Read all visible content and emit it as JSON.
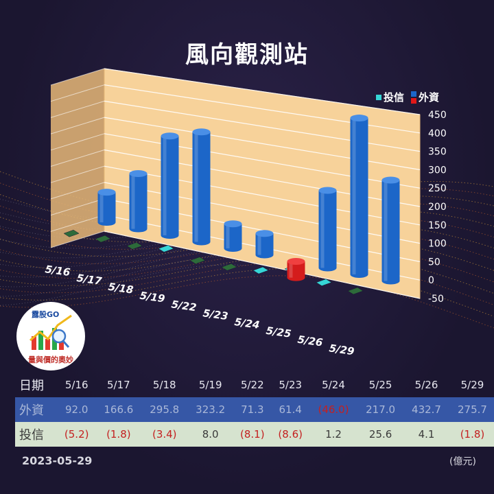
{
  "title": "風向觀測站",
  "legend": [
    {
      "label": "投信",
      "color": "#36d6d6"
    },
    {
      "label": "外資",
      "color": "#1c66c8"
    }
  ],
  "legend_neg_color": "#e01818",
  "chart_data": {
    "type": "bar",
    "title": "風向觀測站",
    "categories": [
      "5/16",
      "5/17",
      "5/18",
      "5/19",
      "5/22",
      "5/23",
      "5/24",
      "5/25",
      "5/26",
      "5/29"
    ],
    "series": [
      {
        "name": "外資",
        "values": [
          92.0,
          166.6,
          295.8,
          323.2,
          71.3,
          61.4,
          -46.0,
          217.0,
          432.7,
          275.7
        ]
      },
      {
        "name": "投信",
        "values": [
          -5.2,
          -1.8,
          -3.4,
          8.0,
          -8.1,
          -8.6,
          1.2,
          25.6,
          4.1,
          -1.8
        ]
      }
    ],
    "yticks": [
      "450",
      "400",
      "350",
      "300",
      "250",
      "200",
      "150",
      "100",
      "50",
      "0",
      "-50"
    ],
    "ylim": [
      -50,
      450
    ],
    "grid": true,
    "legend_position": "top-right"
  },
  "logo": {
    "top_text": "露股GO",
    "bottom_text": "量與價的奧妙"
  },
  "table": {
    "header_label": "日期",
    "fii_label": "外資",
    "sitc_label": "投信",
    "dates": [
      "5/16",
      "5/17",
      "5/18",
      "5/19",
      "5/22",
      "5/23",
      "5/24",
      "5/25",
      "5/26",
      "5/29"
    ],
    "fii": [
      "92.0",
      "166.6",
      "295.8",
      "323.2",
      "71.3",
      "61.4",
      "(46.0)",
      "217.0",
      "432.7",
      "275.7"
    ],
    "sitc": [
      "(5.2)",
      "(1.8)",
      "(3.4)",
      "8.0",
      "(8.1)",
      "(8.6)",
      "1.2",
      "25.6",
      "4.1",
      "(1.8)"
    ]
  },
  "date_stamp": "2023-05-29",
  "unit": "(億元)"
}
